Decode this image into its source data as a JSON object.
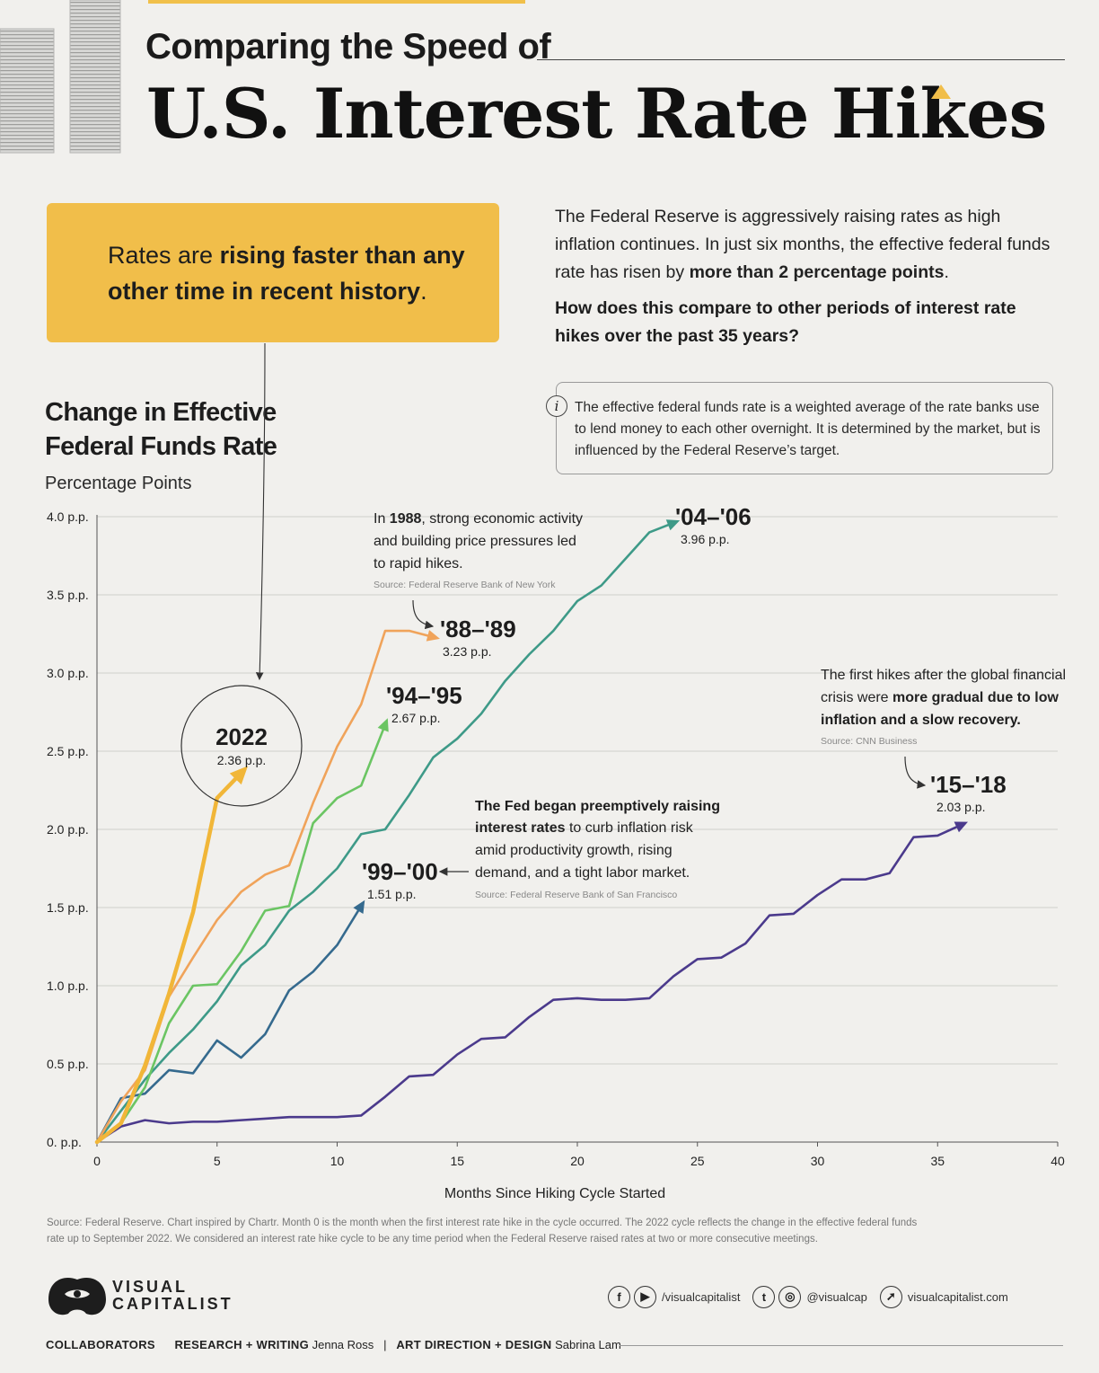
{
  "header": {
    "subtitle": "Comparing the Speed of",
    "title": "U.S. Interest Rate Hikes"
  },
  "callout": {
    "line1_pre": "Rates are ",
    "line1_bold": "rising faster than any",
    "line2_bold": "other time in recent history",
    "line2_post": "."
  },
  "intro": {
    "text_pre": "The Federal Reserve is aggressively raising rates as high inflation continues. In just six months, the effective federal funds rate has risen by ",
    "text_bold": "more than 2 percentage points",
    "text_post": ".",
    "question": "How does this compare to other periods of interest rate hikes over the past 35 years?"
  },
  "info": {
    "icon": "info-icon",
    "text": "The effective federal funds rate is a weighted average of the rate banks use to lend money to each other overnight. It is determined by the market, but is influenced by the Federal Reserve’s target."
  },
  "chart_title": {
    "line1": "Change in Effective",
    "line2": "Federal Funds Rate",
    "unit": "Percentage Points"
  },
  "chart_data": {
    "type": "line",
    "xlabel": "Months Since Hiking Cycle Started",
    "ylabel": "Percentage Points",
    "xlim": [
      0,
      40
    ],
    "ylim": [
      0,
      4.0
    ],
    "x_ticks": [
      0,
      5,
      10,
      15,
      20,
      25,
      30,
      35,
      40
    ],
    "y_ticks": [
      0,
      0.5,
      1.0,
      1.5,
      2.0,
      2.5,
      3.0,
      3.5,
      4.0
    ],
    "y_tick_labels": [
      "0. p.p.",
      "0.5 p.p.",
      "1.0 p.p.",
      "1.5 p.p.",
      "2.0 p.p.",
      "2.5 p.p.",
      "3.0 p.p.",
      "3.5 p.p.",
      "4.0 p.p."
    ],
    "grid": true,
    "series": [
      {
        "name": "'15–'18",
        "end_label": "2.03 p.p.",
        "color": "#4b3a8c",
        "x": [
          0,
          1,
          2,
          3,
          4,
          5,
          6,
          7,
          8,
          9,
          10,
          11,
          12,
          13,
          14,
          15,
          16,
          17,
          18,
          19,
          20,
          21,
          22,
          23,
          24,
          25,
          26,
          27,
          28,
          29,
          30,
          31,
          32,
          33,
          34,
          35,
          36
        ],
        "y": [
          0,
          0.1,
          0.14,
          0.12,
          0.13,
          0.13,
          0.14,
          0.15,
          0.16,
          0.16,
          0.16,
          0.17,
          0.29,
          0.42,
          0.43,
          0.56,
          0.66,
          0.67,
          0.8,
          0.91,
          0.92,
          0.91,
          0.91,
          0.92,
          1.06,
          1.17,
          1.18,
          1.27,
          1.45,
          1.46,
          1.58,
          1.68,
          1.68,
          1.72,
          1.95,
          1.96,
          2.03
        ]
      },
      {
        "name": "'99–'00",
        "end_label": "1.51 p.p.",
        "color": "#356a8e",
        "x": [
          0,
          1,
          2,
          3,
          4,
          5,
          6,
          7,
          8,
          9,
          10,
          11
        ],
        "y": [
          0,
          0.28,
          0.31,
          0.46,
          0.44,
          0.65,
          0.54,
          0.69,
          0.97,
          1.09,
          1.26,
          1.51
        ]
      },
      {
        "name": "'04–'06",
        "end_label": "3.96 p.p.",
        "color": "#3e9a88",
        "x": [
          0,
          1,
          2,
          3,
          4,
          5,
          6,
          7,
          8,
          9,
          10,
          11,
          12,
          13,
          14,
          15,
          16,
          17,
          18,
          19,
          20,
          21,
          22,
          23,
          24
        ],
        "y": [
          0,
          0.2,
          0.4,
          0.57,
          0.72,
          0.9,
          1.13,
          1.26,
          1.48,
          1.6,
          1.75,
          1.97,
          2.0,
          2.22,
          2.46,
          2.58,
          2.74,
          2.95,
          3.12,
          3.27,
          3.46,
          3.56,
          3.73,
          3.9,
          3.96
        ]
      },
      {
        "name": "'94–'95",
        "end_label": "2.67 p.p.",
        "color": "#6bc563",
        "x": [
          0,
          1,
          2,
          3,
          4,
          5,
          6,
          7,
          8,
          9,
          10,
          11,
          12
        ],
        "y": [
          0,
          0.12,
          0.35,
          0.76,
          1.0,
          1.01,
          1.22,
          1.48,
          1.51,
          2.04,
          2.2,
          2.28,
          2.67
        ]
      },
      {
        "name": "'88–'89",
        "end_label": "3.23 p.p.",
        "color": "#f0a35a",
        "x": [
          0,
          1,
          2,
          3,
          4,
          5,
          6,
          7,
          8,
          9,
          10,
          11,
          12,
          13,
          14
        ],
        "y": [
          0,
          0.26,
          0.46,
          0.93,
          1.18,
          1.42,
          1.6,
          1.71,
          1.77,
          2.17,
          2.53,
          2.8,
          3.27,
          3.27,
          3.23
        ]
      },
      {
        "name": "2022",
        "end_label": "2.36 p.p.",
        "color": "#f1b638",
        "x": [
          0,
          1,
          2,
          3,
          4,
          5,
          6
        ],
        "y": [
          0,
          0.12,
          0.49,
          0.95,
          1.47,
          2.2,
          2.36
        ]
      }
    ],
    "annotations": [
      {
        "id": "a1988",
        "pre": "In ",
        "bold": "1988",
        "post": ", strong economic activity",
        "lines": [
          "and building price pressures led",
          "to rapid hikes."
        ],
        "source": "Source: Federal Reserve Bank of New York"
      },
      {
        "id": "a9900",
        "line1_bold": "The Fed began preemptively raising",
        "line2_bold": "interest rates",
        "line2_post": " to curb inflation risk",
        "lines": [
          "amid productivity growth, rising",
          "demand, and a tight labor market."
        ],
        "source": "Source: Federal Reserve Bank of San Francisco"
      },
      {
        "id": "a1518",
        "line1": "The first hikes after the global financial",
        "line2_pre": "crisis were ",
        "line2_bold": "more gradual due to low",
        "line3_bold": "inflation and a slow recovery.",
        "source": "Source: CNN Business"
      }
    ]
  },
  "footer": {
    "source_line1": "Source: Federal Reserve. Chart inspired by Chartr. Month 0 is the month when the first interest rate hike in the cycle occurred. The 2022 cycle reflects the change in the effective federal funds",
    "source_line2": "rate up to September 2022. We considered an interest rate hike cycle to be any time period when the Federal Reserve raised rates at two or more consecutive meetings.",
    "logo_line1": "VISUAL",
    "logo_line2": "CAPITALIST",
    "social1": "/visualcapitalist",
    "social2": "@visualcap",
    "social3": "visualcapitalist.com",
    "collaborators": "COLLABORATORS",
    "research_label": "RESEARCH + WRITING",
    "research_name": "Jenna Ross",
    "separator": "|",
    "design_label": "ART DIRECTION + DESIGN",
    "design_name": "Sabrina Lam"
  }
}
